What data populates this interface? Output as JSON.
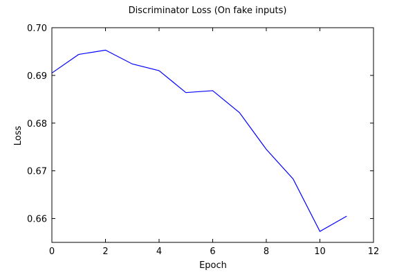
{
  "chart_data": {
    "type": "line",
    "title": "Discriminator Loss (On fake inputs)",
    "xlabel": "Epoch",
    "ylabel": "Loss",
    "xlim": [
      0,
      12
    ],
    "ylim": [
      0.655,
      0.7
    ],
    "xticks": [
      0,
      2,
      4,
      6,
      8,
      10,
      12
    ],
    "xtick_labels": [
      "0",
      "2",
      "4",
      "6",
      "8",
      "10",
      "12"
    ],
    "yticks": [
      0.66,
      0.67,
      0.68,
      0.69,
      0.7
    ],
    "ytick_labels": [
      "0.66",
      "0.67",
      "0.68",
      "0.69",
      "0.70"
    ],
    "grid": false,
    "series": [
      {
        "color": "#0000ff",
        "x": [
          0,
          1,
          2,
          3,
          4,
          5,
          6,
          7,
          8,
          9,
          10,
          11
        ],
        "y": [
          0.6905,
          0.6944,
          0.6953,
          0.6924,
          0.691,
          0.6864,
          0.6868,
          0.6822,
          0.6745,
          0.6683,
          0.6573,
          0.6605
        ]
      }
    ]
  }
}
